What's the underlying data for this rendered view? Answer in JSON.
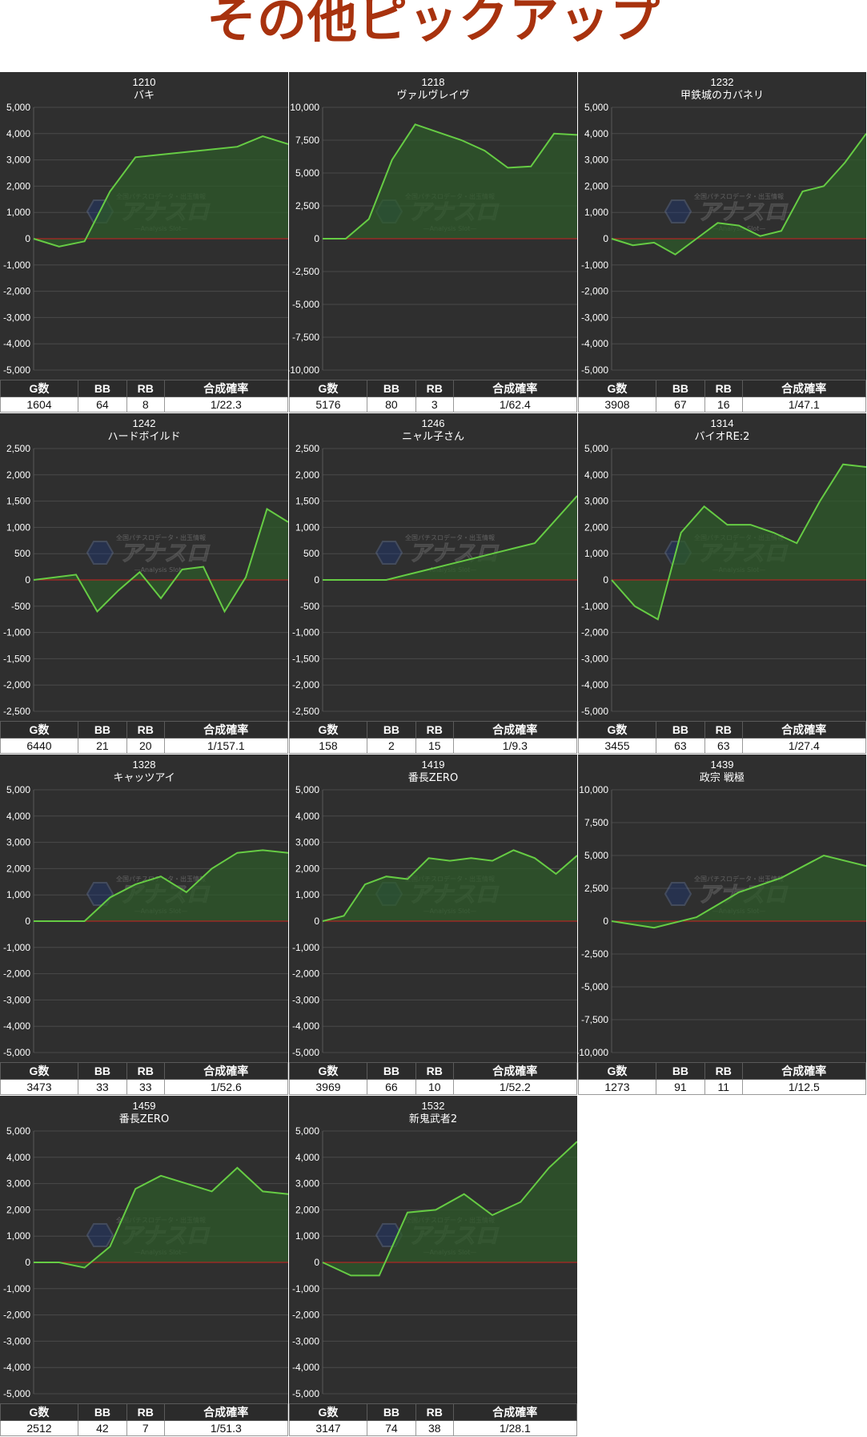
{
  "page_title": "その他ピックアップ",
  "colors": {
    "title": "#a8320e",
    "panel_bg": "#2f2f2f",
    "line": "#66cc44",
    "fill": "#2e5a2a",
    "zero_line": "#cc2222",
    "grid": "#4a4a4a"
  },
  "table_headers": [
    "G数",
    "BB",
    "RB",
    "合成確率"
  ],
  "watermark": {
    "brand": "アナスロ",
    "subtitle": "—Analysis Slot—",
    "top_text": "全国パチスロデータ・出玉情報"
  },
  "chart_data": [
    {
      "type": "area",
      "title": "1210",
      "subtitle": "バキ",
      "ylim": [
        -5000,
        5000
      ],
      "yticks": [
        5000,
        4000,
        3000,
        2000,
        1000,
        0,
        -1000,
        -2000,
        -3000,
        -4000,
        -5000
      ],
      "ytick_labels": [
        "5,000",
        "4,000",
        "3,000",
        "2,000",
        "1,000",
        "0",
        "-1,000",
        "-2,000",
        "-3,000",
        "-4,000",
        "-5,000"
      ],
      "values": [
        0,
        -300,
        -100,
        1800,
        3100,
        3200,
        3300,
        3400,
        3500,
        3900,
        3600
      ],
      "stats": {
        "g": "1604",
        "bb": "64",
        "rb": "8",
        "prob": "1/22.3"
      }
    },
    {
      "type": "area",
      "title": "1218",
      "subtitle": "ヴァルヴレイヴ",
      "ylim": [
        -10000,
        10000
      ],
      "yticks": [
        10000,
        7500,
        5000,
        2500,
        0,
        -2500,
        -5000,
        -7500,
        -10000
      ],
      "ytick_labels": [
        "10,000",
        "7,500",
        "5,000",
        "2,500",
        "0",
        "-2,500",
        "-5,000",
        "-7,500",
        "-10,000"
      ],
      "values": [
        0,
        0,
        1500,
        6000,
        8700,
        8100,
        7500,
        6700,
        5400,
        5500,
        8000,
        7900
      ],
      "stats": {
        "g": "5176",
        "bb": "80",
        "rb": "3",
        "prob": "1/62.4"
      }
    },
    {
      "type": "area",
      "title": "1232",
      "subtitle": "甲鉄城のカバネリ",
      "ylim": [
        -5000,
        5000
      ],
      "yticks": [
        5000,
        4000,
        3000,
        2000,
        1000,
        0,
        -1000,
        -2000,
        -3000,
        -4000,
        -5000
      ],
      "ytick_labels": [
        "5,000",
        "4,000",
        "3,000",
        "2,000",
        "1,000",
        "0",
        "-1,000",
        "-2,000",
        "-3,000",
        "-4,000",
        "-5,000"
      ],
      "values": [
        0,
        -250,
        -150,
        -600,
        0,
        600,
        500,
        100,
        300,
        1800,
        2000,
        2900,
        4000
      ],
      "stats": {
        "g": "3908",
        "bb": "67",
        "rb": "16",
        "prob": "1/47.1"
      }
    },
    {
      "type": "area",
      "title": "1242",
      "subtitle": "ハードボイルド",
      "ylim": [
        -2500,
        2500
      ],
      "yticks": [
        2500,
        2000,
        1500,
        1000,
        500,
        0,
        -500,
        -1000,
        -1500,
        -2000,
        -2500
      ],
      "ytick_labels": [
        "2,500",
        "2,000",
        "1,500",
        "1,000",
        "500",
        "0",
        "-500",
        "-1,000",
        "-1,500",
        "-2,000",
        "-2,500"
      ],
      "values": [
        0,
        50,
        100,
        -600,
        -200,
        150,
        -350,
        200,
        250,
        -600,
        50,
        1350,
        1100
      ],
      "stats": {
        "g": "6440",
        "bb": "21",
        "rb": "20",
        "prob": "1/157.1"
      }
    },
    {
      "type": "area",
      "title": "1246",
      "subtitle": "ニャル子さん",
      "ylim": [
        -2500,
        2500
      ],
      "yticks": [
        2500,
        2000,
        1500,
        1000,
        500,
        0,
        -500,
        -1000,
        -1500,
        -2000,
        -2500
      ],
      "ytick_labels": [
        "2,500",
        "2,000",
        "1,500",
        "1,000",
        "500",
        "0",
        "-500",
        "-1,000",
        "-1,500",
        "-2,000",
        "-2,500"
      ],
      "values": [
        0,
        0,
        0,
        0,
        100,
        200,
        300,
        400,
        500,
        600,
        700,
        1150,
        1600
      ],
      "stats": {
        "g": "158",
        "bb": "2",
        "rb": "15",
        "prob": "1/9.3"
      }
    },
    {
      "type": "area",
      "title": "1314",
      "subtitle": "バイオRE:2",
      "ylim": [
        -5000,
        5000
      ],
      "yticks": [
        5000,
        4000,
        3000,
        2000,
        1000,
        0,
        -1000,
        -2000,
        -3000,
        -4000,
        -5000
      ],
      "ytick_labels": [
        "5,000",
        "4,000",
        "3,000",
        "2,000",
        "1,000",
        "0",
        "-1,000",
        "-2,000",
        "-3,000",
        "-4,000",
        "-5,000"
      ],
      "values": [
        0,
        -1000,
        -1500,
        1800,
        2800,
        2100,
        2100,
        1800,
        1400,
        3000,
        4400,
        4300
      ],
      "stats": {
        "g": "3455",
        "bb": "63",
        "rb": "63",
        "prob": "1/27.4"
      }
    },
    {
      "type": "area",
      "title": "1328",
      "subtitle": "キャッツアイ",
      "ylim": [
        -5000,
        5000
      ],
      "yticks": [
        5000,
        4000,
        3000,
        2000,
        1000,
        0,
        -1000,
        -2000,
        -3000,
        -4000,
        -5000
      ],
      "ytick_labels": [
        "5,000",
        "4,000",
        "3,000",
        "2,000",
        "1,000",
        "0",
        "-1,000",
        "-2,000",
        "-3,000",
        "-4,000",
        "-5,000"
      ],
      "values": [
        0,
        0,
        0,
        900,
        1400,
        1700,
        1100,
        2000,
        2600,
        2700,
        2600
      ],
      "stats": {
        "g": "3473",
        "bb": "33",
        "rb": "33",
        "prob": "1/52.6"
      }
    },
    {
      "type": "area",
      "title": "1419",
      "subtitle": "番長ZERO",
      "ylim": [
        -5000,
        5000
      ],
      "yticks": [
        5000,
        4000,
        3000,
        2000,
        1000,
        0,
        -1000,
        -2000,
        -3000,
        -4000,
        -5000
      ],
      "ytick_labels": [
        "5,000",
        "4,000",
        "3,000",
        "2,000",
        "1,000",
        "0",
        "-1,000",
        "-2,000",
        "-3,000",
        "-4,000",
        "-5,000"
      ],
      "values": [
        0,
        200,
        1400,
        1700,
        1600,
        2400,
        2300,
        2400,
        2300,
        2700,
        2400,
        1800,
        2500
      ],
      "stats": {
        "g": "3969",
        "bb": "66",
        "rb": "10",
        "prob": "1/52.2"
      }
    },
    {
      "type": "area",
      "title": "1439",
      "subtitle": "政宗 戦極",
      "ylim": [
        -10000,
        10000
      ],
      "yticks": [
        10000,
        7500,
        5000,
        2500,
        0,
        -2500,
        -5000,
        -7500,
        -10000
      ],
      "ytick_labels": [
        "10,000",
        "7,500",
        "5,000",
        "2,500",
        "0",
        "-2,500",
        "-5,000",
        "-7,500",
        "-10,000"
      ],
      "values": [
        0,
        -500,
        300,
        2200,
        3300,
        5000,
        4200
      ],
      "stats": {
        "g": "1273",
        "bb": "91",
        "rb": "11",
        "prob": "1/12.5"
      }
    },
    {
      "type": "area",
      "title": "1459",
      "subtitle": "番長ZERO",
      "ylim": [
        -5000,
        5000
      ],
      "yticks": [
        5000,
        4000,
        3000,
        2000,
        1000,
        0,
        -1000,
        -2000,
        -3000,
        -4000,
        -5000
      ],
      "ytick_labels": [
        "5,000",
        "4,000",
        "3,000",
        "2,000",
        "1,000",
        "0",
        "-1,000",
        "-2,000",
        "-3,000",
        "-4,000",
        "-5,000"
      ],
      "values": [
        0,
        0,
        -200,
        600,
        2800,
        3300,
        3000,
        2700,
        3600,
        2700,
        2600
      ],
      "stats": {
        "g": "2512",
        "bb": "42",
        "rb": "7",
        "prob": "1/51.3"
      }
    },
    {
      "type": "area",
      "title": "1532",
      "subtitle": "新鬼武者2",
      "ylim": [
        -5000,
        5000
      ],
      "yticks": [
        5000,
        4000,
        3000,
        2000,
        1000,
        0,
        -1000,
        -2000,
        -3000,
        -4000,
        -5000
      ],
      "ytick_labels": [
        "5,000",
        "4,000",
        "3,000",
        "2,000",
        "1,000",
        "0",
        "-1,000",
        "-2,000",
        "-3,000",
        "-4,000",
        "-5,000"
      ],
      "values": [
        0,
        -500,
        -500,
        1900,
        2000,
        2600,
        1800,
        2300,
        3600,
        4600
      ],
      "stats": {
        "g": "3147",
        "bb": "74",
        "rb": "38",
        "prob": "1/28.1"
      }
    }
  ]
}
